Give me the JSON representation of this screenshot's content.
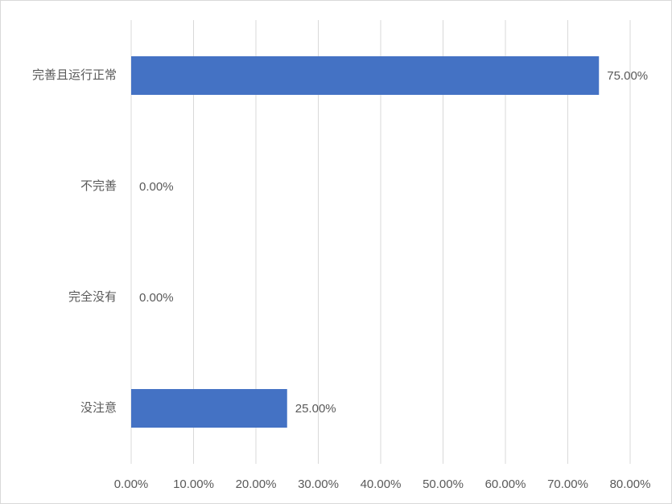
{
  "chart_data": {
    "type": "hbar",
    "categories": [
      "完善且运行正常",
      "不完善",
      "完全没有",
      "没注意"
    ],
    "values": [
      75,
      0,
      0,
      25
    ],
    "value_labels": [
      "75.00%",
      "0.00%",
      "0.00%",
      "25.00%"
    ],
    "color": "#4472c4",
    "xlim": [
      0,
      80
    ],
    "xticks": [
      {
        "value": 0,
        "label": "0.00%"
      },
      {
        "value": 10,
        "label": "10.00%"
      },
      {
        "value": 20,
        "label": "20.00%"
      },
      {
        "value": 30,
        "label": "30.00%"
      },
      {
        "value": 40,
        "label": "40.00%"
      },
      {
        "value": 50,
        "label": "50.00%"
      },
      {
        "value": 60,
        "label": "60.00%"
      },
      {
        "value": 70,
        "label": "70.00%"
      },
      {
        "value": 80,
        "label": "80.00%"
      }
    ],
    "grid": true
  }
}
